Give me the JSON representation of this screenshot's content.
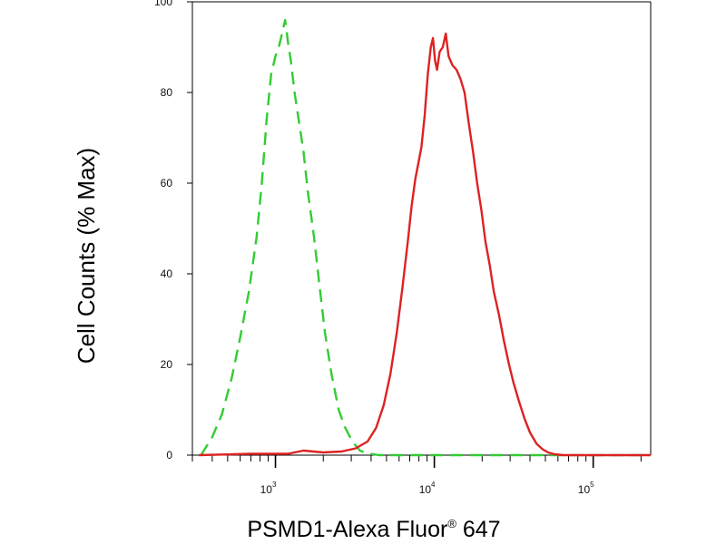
{
  "chart_data": {
    "type": "line",
    "title": "",
    "xlabel": "PSMD1-Alexa Fluor® 647",
    "xlabel_parts": {
      "main": "PSMD1-Alexa Fluor",
      "mark": "®",
      "suffix": " 647"
    },
    "ylabel": "Cell Counts (% Max)",
    "x_scale": "log",
    "xlim": [
      300,
      230000
    ],
    "ylim": [
      0,
      100
    ],
    "grid": false,
    "legend": "none",
    "yticks": [
      0,
      20,
      40,
      60,
      80,
      100
    ],
    "ytick_labels": [
      "0",
      "20",
      "40",
      "60",
      "80",
      "100"
    ],
    "xticks": [
      1000,
      10000,
      100000
    ],
    "xtick_labels": [
      {
        "base": "10",
        "exp": "3"
      },
      {
        "base": "10",
        "exp": "4"
      },
      {
        "base": "10",
        "exp": "5"
      }
    ],
    "series": [
      {
        "color": "#33cc33",
        "style": "dashed",
        "points": [
          [
            340,
            0
          ],
          [
            400,
            4
          ],
          [
            460,
            9
          ],
          [
            530,
            17
          ],
          [
            600,
            26
          ],
          [
            680,
            36
          ],
          [
            760,
            48
          ],
          [
            820,
            60
          ],
          [
            880,
            74
          ],
          [
            940,
            84
          ],
          [
            1000,
            88
          ],
          [
            1050,
            90
          ],
          [
            1100,
            93
          ],
          [
            1150,
            96
          ],
          [
            1200,
            91
          ],
          [
            1250,
            87
          ],
          [
            1320,
            80
          ],
          [
            1400,
            74
          ],
          [
            1500,
            67
          ],
          [
            1600,
            58
          ],
          [
            1750,
            48
          ],
          [
            1900,
            37
          ],
          [
            2050,
            27
          ],
          [
            2250,
            18
          ],
          [
            2500,
            10
          ],
          [
            2750,
            6
          ],
          [
            3050,
            3
          ],
          [
            3400,
            1
          ],
          [
            3800,
            0.4
          ],
          [
            4500,
            0
          ],
          [
            230000,
            0
          ]
        ]
      },
      {
        "color": "#dd2222",
        "style": "solid",
        "points": [
          [
            330,
            0
          ],
          [
            700,
            0.3
          ],
          [
            1200,
            0.3
          ],
          [
            1500,
            1
          ],
          [
            2000,
            0.6
          ],
          [
            2600,
            0.8
          ],
          [
            3200,
            1.5
          ],
          [
            3800,
            3
          ],
          [
            4300,
            6
          ],
          [
            4800,
            11
          ],
          [
            5300,
            18
          ],
          [
            5800,
            27
          ],
          [
            6300,
            37
          ],
          [
            6800,
            47
          ],
          [
            7200,
            55
          ],
          [
            7600,
            61
          ],
          [
            8000,
            65
          ],
          [
            8300,
            68
          ],
          [
            8700,
            75
          ],
          [
            9100,
            84
          ],
          [
            9500,
            90
          ],
          [
            9800,
            92
          ],
          [
            10100,
            87
          ],
          [
            10400,
            85
          ],
          [
            10800,
            89
          ],
          [
            11300,
            90
          ],
          [
            11800,
            93
          ],
          [
            12300,
            88
          ],
          [
            13000,
            86
          ],
          [
            13800,
            85
          ],
          [
            14600,
            83
          ],
          [
            15500,
            80
          ],
          [
            16500,
            73
          ],
          [
            17500,
            67
          ],
          [
            18600,
            60
          ],
          [
            19800,
            54
          ],
          [
            21000,
            47
          ],
          [
            22300,
            42
          ],
          [
            23700,
            36
          ],
          [
            25500,
            31
          ],
          [
            27500,
            25
          ],
          [
            29500,
            20
          ],
          [
            31500,
            16
          ],
          [
            34000,
            12
          ],
          [
            37000,
            8
          ],
          [
            40000,
            5
          ],
          [
            44000,
            2.5
          ],
          [
            48000,
            1.3
          ],
          [
            52000,
            0.6
          ],
          [
            57000,
            0.2
          ],
          [
            65000,
            0
          ],
          [
            230000,
            0
          ]
        ]
      }
    ]
  }
}
